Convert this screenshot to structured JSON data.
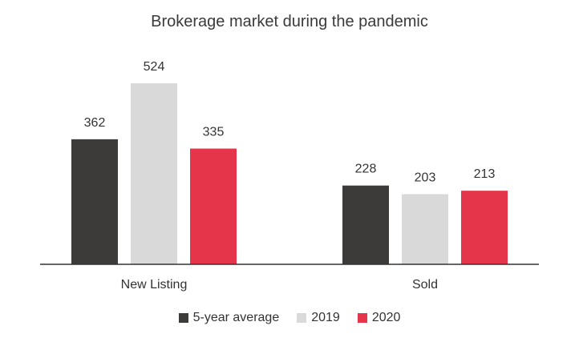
{
  "chart_data": {
    "type": "bar",
    "title": "Brokerage market during the pandemic",
    "xlabel": "",
    "ylabel": "",
    "categories": [
      "New Listing",
      "Sold"
    ],
    "series": [
      {
        "name": "5-year average",
        "values": [
          362,
          228
        ],
        "color": "#3c3b39"
      },
      {
        "name": "2019",
        "values": [
          524,
          203
        ],
        "color": "#d9d9d9"
      },
      {
        "name": "2020",
        "values": [
          335,
          213
        ],
        "color": "#e4354b"
      }
    ],
    "ylim": [
      0,
      580
    ],
    "grid": false,
    "legend": "bottom-center"
  }
}
